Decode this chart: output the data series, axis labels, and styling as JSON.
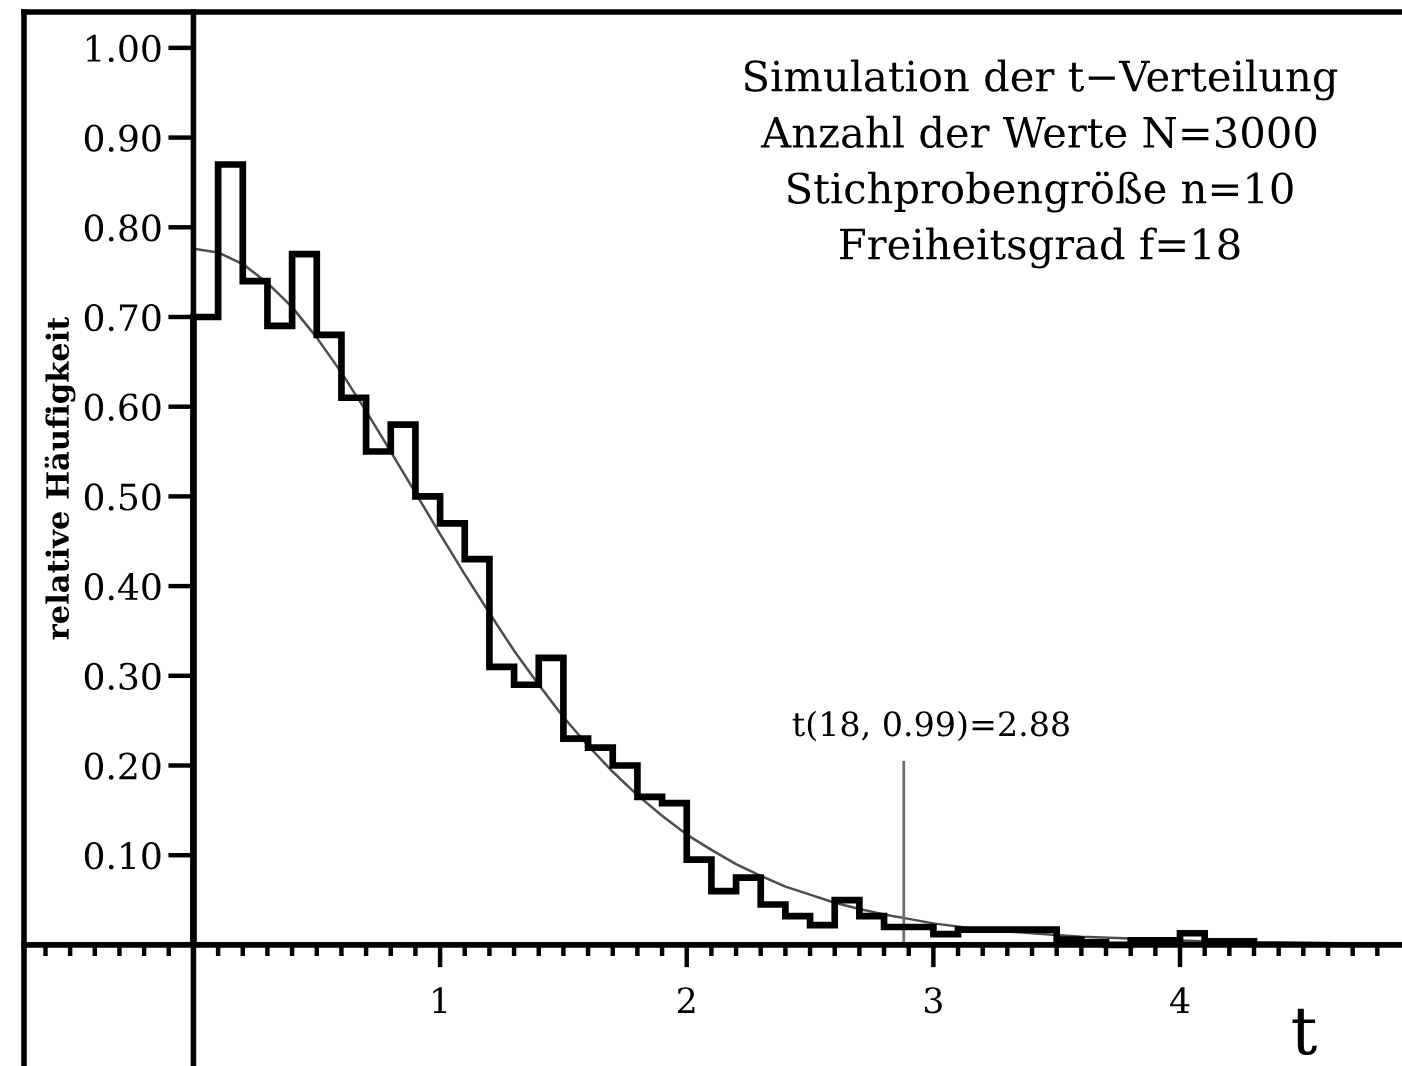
{
  "chart_data": {
    "type": "histogram",
    "xlabel": "t",
    "ylabel": "relative Häufigkeit",
    "annotations": [
      "Simulation der t−Verteilung",
      "Anzahl der Werte N=3000",
      "Stichprobengröße n=10",
      "Freiheitsgrad f=18"
    ],
    "series": [
      {
        "color": "#000000",
        "bins": [
          0.0,
          0.1,
          0.2,
          0.3,
          0.4,
          0.5,
          0.6,
          0.7,
          0.8,
          0.9,
          1.0,
          1.1,
          1.2,
          1.3,
          1.4,
          1.5,
          1.6,
          1.7,
          1.8,
          1.9,
          2.0,
          2.1,
          2.2,
          2.3,
          2.4,
          2.5,
          2.6,
          2.7,
          2.8,
          2.9,
          3.0,
          3.1,
          3.2,
          3.3,
          3.4,
          3.5,
          3.6,
          3.7,
          3.8,
          3.9,
          4.0,
          4.1,
          4.2,
          4.3
        ],
        "values": [
          0.7,
          0.87,
          0.74,
          0.69,
          0.77,
          0.68,
          0.61,
          0.55,
          0.58,
          0.5,
          0.47,
          0.43,
          0.31,
          0.29,
          0.32,
          0.23,
          0.22,
          0.2,
          0.165,
          0.158,
          0.095,
          0.06,
          0.075,
          0.045,
          0.032,
          0.022,
          0.05,
          0.032,
          0.02,
          0.02,
          0.012,
          0.017,
          0.017,
          0.017,
          0.017,
          0.006,
          0.003,
          0.0,
          0.005,
          0.005,
          0.013,
          0.004,
          0.004
        ]
      },
      {
        "type": "line",
        "color": "#4d4d4d",
        "x": [
          0.0,
          0.1,
          0.2,
          0.3,
          0.4,
          0.5,
          0.6,
          0.7,
          0.8,
          0.9,
          1.0,
          1.1,
          1.2,
          1.3,
          1.4,
          1.5,
          1.6,
          1.7,
          1.8,
          1.9,
          2.0,
          2.1,
          2.2,
          2.3,
          2.4,
          2.5,
          2.6,
          2.7,
          2.8,
          2.9,
          3.0,
          3.2,
          3.4,
          3.6,
          3.8,
          4.0,
          4.2,
          4.4,
          4.6,
          4.8
        ],
        "values": [
          0.776,
          0.772,
          0.759,
          0.738,
          0.711,
          0.677,
          0.638,
          0.595,
          0.55,
          0.504,
          0.458,
          0.413,
          0.37,
          0.328,
          0.29,
          0.254,
          0.222,
          0.193,
          0.167,
          0.144,
          0.123,
          0.106,
          0.09,
          0.077,
          0.065,
          0.056,
          0.047,
          0.04,
          0.034,
          0.029,
          0.024,
          0.017,
          0.013,
          0.009,
          0.007,
          0.005,
          0.003,
          0.003,
          0.002,
          0.001
        ]
      }
    ],
    "xlim": [
      -0.687,
      4.9
    ],
    "ylim": [
      -0.135,
      1.04
    ],
    "xticks": [
      {
        "value": -0.6,
        "label": null
      },
      {
        "value": -0.5,
        "label": null
      },
      {
        "value": -0.4,
        "label": null
      },
      {
        "value": -0.3,
        "label": null
      },
      {
        "value": -0.2,
        "label": null
      },
      {
        "value": -0.1,
        "label": null
      },
      {
        "value": 0.1,
        "label": null
      },
      {
        "value": 0.2,
        "label": null
      },
      {
        "value": 0.3,
        "label": null
      },
      {
        "value": 0.4,
        "label": null
      },
      {
        "value": 0.5,
        "label": null
      },
      {
        "value": 0.6,
        "label": null
      },
      {
        "value": 0.7,
        "label": null
      },
      {
        "value": 0.8,
        "label": null
      },
      {
        "value": 0.9,
        "label": null
      },
      1,
      {
        "value": 1.1,
        "label": null
      },
      {
        "value": 1.2,
        "label": null
      },
      {
        "value": 1.3,
        "label": null
      },
      {
        "value": 1.4,
        "label": null
      },
      {
        "value": 1.5,
        "label": null
      },
      {
        "value": 1.6,
        "label": null
      },
      {
        "value": 1.7,
        "label": null
      },
      {
        "value": 1.8,
        "label": null
      },
      {
        "value": 1.9,
        "label": null
      },
      2,
      {
        "value": 2.1,
        "label": null
      },
      {
        "value": 2.2,
        "label": null
      },
      {
        "value": 2.3,
        "label": null
      },
      {
        "value": 2.4,
        "label": null
      },
      {
        "value": 2.5,
        "label": null
      },
      {
        "value": 2.6,
        "label": null
      },
      {
        "value": 2.7,
        "label": null
      },
      {
        "value": 2.8,
        "label": null
      },
      {
        "value": 2.9,
        "label": null
      },
      3,
      {
        "value": 3.1,
        "label": null
      },
      {
        "value": 3.2,
        "label": null
      },
      {
        "value": 3.3,
        "label": null
      },
      {
        "value": 3.4,
        "label": null
      },
      {
        "value": 3.5,
        "label": null
      },
      {
        "value": 3.6,
        "label": null
      },
      {
        "value": 3.7,
        "label": null
      },
      {
        "value": 3.8,
        "label": null
      },
      {
        "value": 3.9,
        "label": null
      },
      4,
      {
        "value": 4.1,
        "label": null
      },
      {
        "value": 4.2,
        "label": null
      },
      {
        "value": 4.3,
        "label": null
      },
      {
        "value": 4.4,
        "label": null
      },
      {
        "value": 4.5,
        "label": null
      },
      {
        "value": 4.6,
        "label": null
      },
      {
        "value": 4.7,
        "label": null
      },
      {
        "value": 4.8,
        "label": null
      }
    ],
    "yticks": [
      {
        "value": 0.1,
        "label": "0.10"
      },
      {
        "value": 0.2,
        "label": "0.20"
      },
      {
        "value": 0.3,
        "label": "0.30"
      },
      {
        "value": 0.4,
        "label": "0.40"
      },
      {
        "value": 0.5,
        "label": "0.50"
      },
      {
        "value": 0.6,
        "label": "0.60"
      },
      {
        "value": 0.7,
        "label": "0.70"
      },
      {
        "value": 0.8,
        "label": "0.80"
      },
      {
        "value": 0.9,
        "label": "0.90"
      },
      {
        "value": 1.0,
        "label": "1.00"
      }
    ],
    "ref_lines": [
      {
        "axis": "x",
        "value": 2.88,
        "label": "t(18, 0.99)=2.88",
        "color": "#6e6e6e"
      }
    ]
  }
}
